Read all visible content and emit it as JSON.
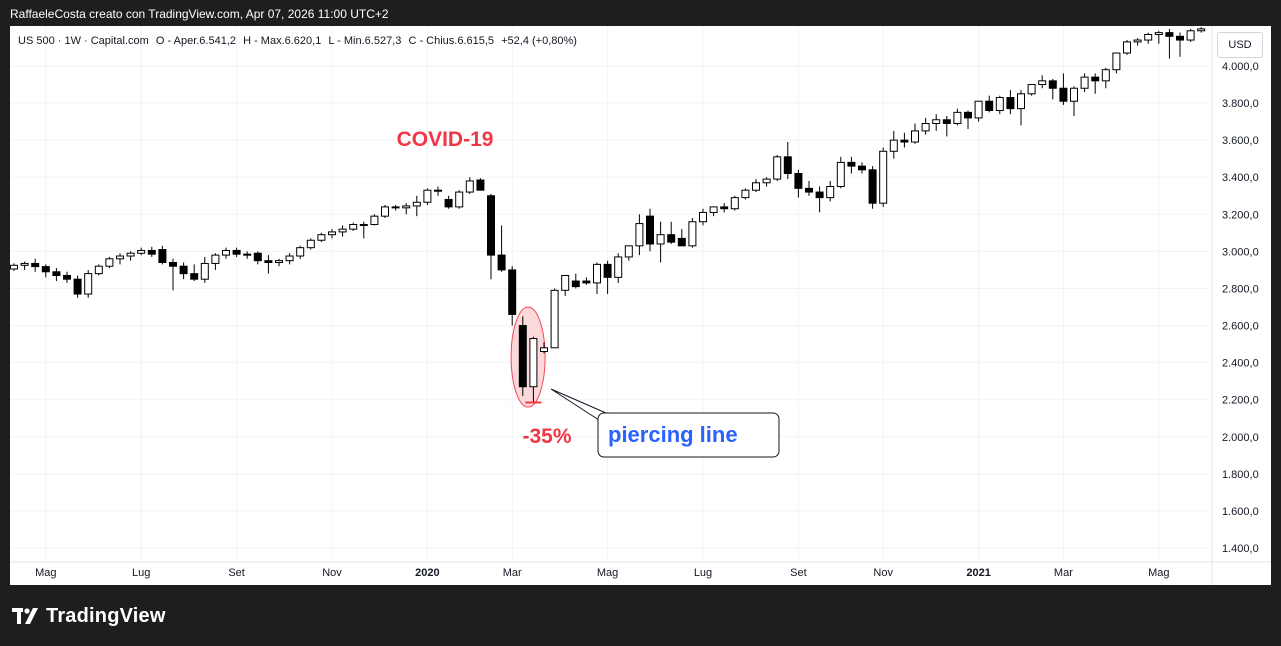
{
  "header": {
    "attribution": "RaffaeleCosta creato con TradingView.com, Apr 07, 2026 11:00 UTC+2"
  },
  "legend": {
    "symbol": "US 500 · 1W · Capital.com",
    "open": "O - Aper.6.541,2",
    "high": "H - Max.6.620,1",
    "low": "L - Min.6.527,3",
    "close": "C - Chius.6.615,5",
    "change": "+52,4 (+0,80%)"
  },
  "currency": "USD",
  "annotations": {
    "event": "COVID-19",
    "drawdown": "-35%",
    "pattern": "piercing line"
  },
  "footer": {
    "brand": "TradingView"
  },
  "colors": {
    "annotation_red": "#f23645",
    "annotation_blue": "#2962ff",
    "candle_up_fill": "#ffffff",
    "candle_down_fill": "#000000",
    "candle_line": "#000000",
    "grid": "#f0f3fa",
    "ellipse_fill": "#fbd5d8"
  },
  "chart_data": {
    "type": "candlestick",
    "title": "US 500 · 1W · Capital.com",
    "timeframe": "weekly",
    "currency": "USD",
    "ylim": [
      1300,
      4200
    ],
    "y_ticks": [
      "1.400,0",
      "1.600,0",
      "1.800,0",
      "2.000,0",
      "2.200,0",
      "2.400,0",
      "2.600,0",
      "2.800,0",
      "3.000,0",
      "3.200,0",
      "3.400,0",
      "3.600,0",
      "3.800,0",
      "4.000,0"
    ],
    "y_tick_values": [
      1400,
      1600,
      1800,
      2000,
      2200,
      2400,
      2600,
      2800,
      3000,
      3200,
      3400,
      3600,
      3800,
      4000
    ],
    "x_ticks": [
      {
        "label": "Mag",
        "index": 3
      },
      {
        "label": "Lug",
        "index": 12
      },
      {
        "label": "Set",
        "index": 21
      },
      {
        "label": "Nov",
        "index": 30
      },
      {
        "label": "2020",
        "index": 39,
        "bold": true
      },
      {
        "label": "Mar",
        "index": 47
      },
      {
        "label": "Mag",
        "index": 56
      },
      {
        "label": "Lug",
        "index": 65
      },
      {
        "label": "Set",
        "index": 74
      },
      {
        "label": "Nov",
        "index": 82
      },
      {
        "label": "2021",
        "index": 91,
        "bold": true
      },
      {
        "label": "Mar",
        "index": 99
      },
      {
        "label": "Mag",
        "index": 108
      }
    ],
    "candles": [
      [
        2905,
        2935,
        2895,
        2925
      ],
      [
        2925,
        2945,
        2900,
        2935
      ],
      [
        2935,
        2960,
        2890,
        2918
      ],
      [
        2918,
        2930,
        2860,
        2890
      ],
      [
        2890,
        2910,
        2840,
        2870
      ],
      [
        2870,
        2890,
        2830,
        2850
      ],
      [
        2850,
        2870,
        2750,
        2770
      ],
      [
        2770,
        2900,
        2750,
        2880
      ],
      [
        2880,
        2930,
        2870,
        2920
      ],
      [
        2920,
        2970,
        2910,
        2960
      ],
      [
        2960,
        2990,
        2930,
        2975
      ],
      [
        2975,
        3000,
        2950,
        2990
      ],
      [
        2990,
        3020,
        2980,
        3005
      ],
      [
        3005,
        3025,
        2970,
        2985
      ],
      [
        3010,
        3030,
        2930,
        2940
      ],
      [
        2940,
        2960,
        2790,
        2920
      ],
      [
        2920,
        2940,
        2850,
        2880
      ],
      [
        2880,
        2930,
        2840,
        2850
      ],
      [
        2850,
        2970,
        2830,
        2935
      ],
      [
        2935,
        2990,
        2900,
        2980
      ],
      [
        2980,
        3020,
        2960,
        3005
      ],
      [
        3005,
        3020,
        2970,
        2985
      ],
      [
        2985,
        3000,
        2960,
        2980
      ],
      [
        2990,
        3000,
        2930,
        2950
      ],
      [
        2950,
        2980,
        2880,
        2940
      ],
      [
        2940,
        2960,
        2920,
        2950
      ],
      [
        2950,
        2990,
        2930,
        2975
      ],
      [
        2975,
        3030,
        2960,
        3020
      ],
      [
        3020,
        3070,
        3010,
        3060
      ],
      [
        3060,
        3100,
        3050,
        3090
      ],
      [
        3090,
        3120,
        3070,
        3105
      ],
      [
        3105,
        3140,
        3080,
        3120
      ],
      [
        3120,
        3155,
        3110,
        3145
      ],
      [
        3145,
        3160,
        3070,
        3145
      ],
      [
        3145,
        3200,
        3140,
        3190
      ],
      [
        3190,
        3250,
        3180,
        3240
      ],
      [
        3240,
        3250,
        3220,
        3235
      ],
      [
        3235,
        3260,
        3200,
        3245
      ],
      [
        3245,
        3300,
        3190,
        3265
      ],
      [
        3265,
        3340,
        3250,
        3330
      ],
      [
        3330,
        3350,
        3300,
        3325
      ],
      [
        3280,
        3300,
        3230,
        3240
      ],
      [
        3240,
        3330,
        3230,
        3320
      ],
      [
        3320,
        3400,
        3310,
        3380
      ],
      [
        3385,
        3395,
        3330,
        3330
      ],
      [
        3300,
        3310,
        2850,
        2980
      ],
      [
        2980,
        3140,
        2890,
        2900
      ],
      [
        2900,
        2920,
        2600,
        2660
      ],
      [
        2600,
        2650,
        2220,
        2270
      ],
      [
        2270,
        2540,
        2180,
        2530
      ],
      [
        2460,
        2510,
        2450,
        2480
      ],
      [
        2480,
        2800,
        2490,
        2790
      ],
      [
        2790,
        2860,
        2760,
        2870
      ],
      [
        2840,
        2880,
        2800,
        2810
      ],
      [
        2840,
        2860,
        2820,
        2830
      ],
      [
        2830,
        2940,
        2770,
        2930
      ],
      [
        2930,
        2950,
        2770,
        2860
      ],
      [
        2860,
        2990,
        2830,
        2970
      ],
      [
        2970,
        3020,
        2950,
        3030
      ],
      [
        3030,
        3200,
        2980,
        3150
      ],
      [
        3190,
        3230,
        3000,
        3040
      ],
      [
        3040,
        3160,
        2940,
        3090
      ],
      [
        3090,
        3160,
        3040,
        3050
      ],
      [
        3070,
        3120,
        3040,
        3030
      ],
      [
        3030,
        3180,
        3020,
        3160
      ],
      [
        3160,
        3230,
        3140,
        3210
      ],
      [
        3210,
        3240,
        3190,
        3240
      ],
      [
        3240,
        3260,
        3210,
        3230
      ],
      [
        3230,
        3300,
        3220,
        3290
      ],
      [
        3290,
        3340,
        3280,
        3330
      ],
      [
        3330,
        3390,
        3320,
        3370
      ],
      [
        3370,
        3400,
        3350,
        3390
      ],
      [
        3390,
        3520,
        3380,
        3510
      ],
      [
        3510,
        3590,
        3390,
        3420
      ],
      [
        3420,
        3440,
        3290,
        3340
      ],
      [
        3340,
        3380,
        3300,
        3320
      ],
      [
        3320,
        3350,
        3210,
        3290
      ],
      [
        3290,
        3380,
        3270,
        3350
      ],
      [
        3350,
        3510,
        3340,
        3480
      ],
      [
        3480,
        3510,
        3420,
        3460
      ],
      [
        3460,
        3480,
        3420,
        3440
      ],
      [
        3440,
        3460,
        3230,
        3260
      ],
      [
        3260,
        3560,
        3240,
        3540
      ],
      [
        3540,
        3650,
        3500,
        3600
      ],
      [
        3600,
        3640,
        3560,
        3590
      ],
      [
        3590,
        3690,
        3580,
        3650
      ],
      [
        3650,
        3720,
        3630,
        3690
      ],
      [
        3690,
        3740,
        3650,
        3710
      ],
      [
        3710,
        3730,
        3620,
        3690
      ],
      [
        3690,
        3770,
        3680,
        3750
      ],
      [
        3750,
        3760,
        3660,
        3720
      ],
      [
        3720,
        3790,
        3700,
        3810
      ],
      [
        3810,
        3840,
        3750,
        3760
      ],
      [
        3760,
        3840,
        3740,
        3830
      ],
      [
        3830,
        3870,
        3740,
        3770
      ],
      [
        3770,
        3870,
        3680,
        3850
      ],
      [
        3850,
        3900,
        3840,
        3900
      ],
      [
        3900,
        3950,
        3880,
        3920
      ],
      [
        3920,
        3930,
        3820,
        3880
      ],
      [
        3880,
        3960,
        3790,
        3810
      ],
      [
        3810,
        3890,
        3730,
        3880
      ],
      [
        3880,
        3960,
        3860,
        3940
      ],
      [
        3940,
        3960,
        3850,
        3920
      ],
      [
        3920,
        3990,
        3880,
        3980
      ],
      [
        3980,
        4070,
        3960,
        4070
      ],
      [
        4070,
        4140,
        4060,
        4130
      ],
      [
        4130,
        4150,
        4110,
        4140
      ],
      [
        4140,
        4180,
        4120,
        4170
      ],
      [
        4170,
        4190,
        4120,
        4180
      ],
      [
        4180,
        4200,
        4040,
        4160
      ],
      [
        4160,
        4180,
        4050,
        4140
      ],
      [
        4140,
        4200,
        4130,
        4190
      ],
      [
        4190,
        4210,
        4180,
        4200
      ]
    ],
    "candle_fields": [
      "open",
      "high",
      "low",
      "close"
    ]
  }
}
